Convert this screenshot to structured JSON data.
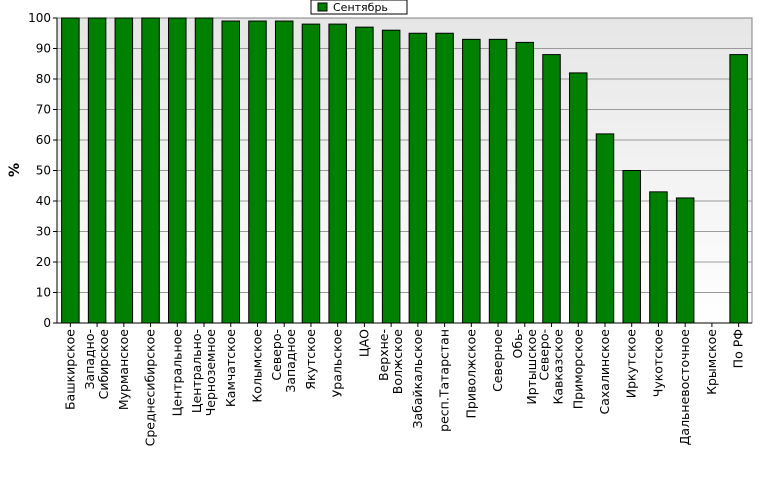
{
  "chart_data": {
    "type": "bar",
    "title": "",
    "xlabel": "",
    "ylabel": "%",
    "ylim": [
      0,
      100
    ],
    "yticks": [
      0,
      10,
      20,
      30,
      40,
      50,
      60,
      70,
      80,
      90,
      100
    ],
    "grid": true,
    "legend_position": "top-center",
    "bar_color": "#008000",
    "categories": [
      "Башкирское",
      "Западно-Сибирское",
      "Мурманское",
      "Среднесибирское",
      "Центральное",
      "Центрально-Черноземное",
      "Камчатское",
      "Колымское",
      "Северо-Западное",
      "Якутское",
      "Уральское",
      "ЦАО",
      "Верхне-Волжское",
      "Забайкальское",
      "респ.Татарстан",
      "Приволжское",
      "Северное",
      "Обь-Иртышское",
      "Северо-Кавказское",
      "Приморское",
      "Сахалинское",
      "Иркутское",
      "Чукотское",
      "Дальневосточное",
      "Крымское",
      "По РФ"
    ],
    "series": [
      {
        "name": "Сентябрь",
        "values": [
          100,
          100,
          100,
          100,
          100,
          100,
          99,
          99,
          99,
          98,
          98,
          97,
          96,
          95,
          95,
          93,
          93,
          92,
          88,
          82,
          62,
          50,
          43,
          41,
          0,
          88
        ]
      }
    ]
  }
}
